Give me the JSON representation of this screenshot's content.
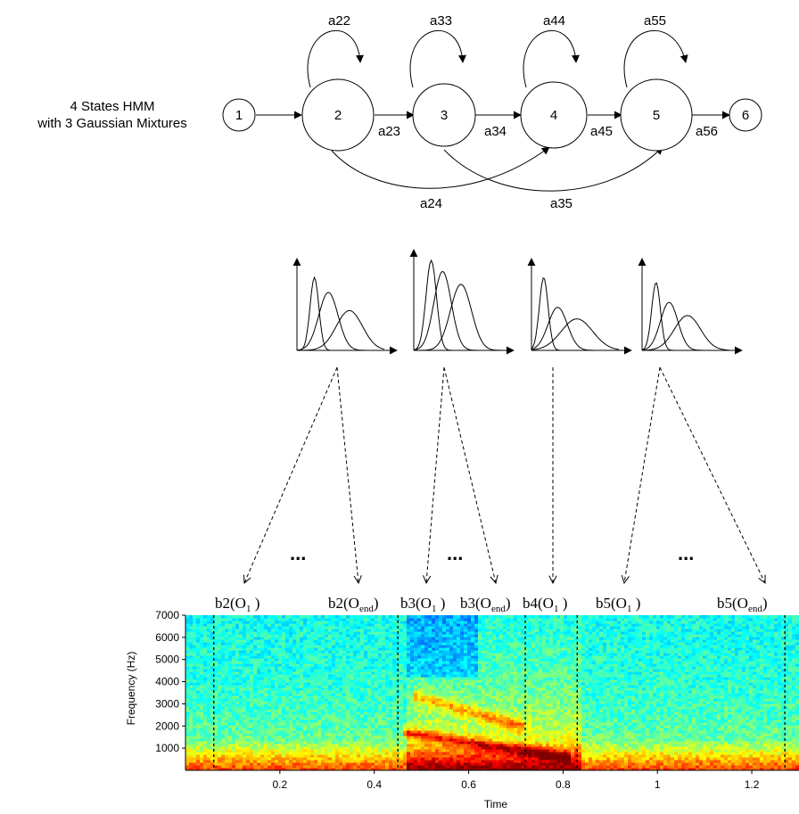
{
  "hmm": {
    "title_line1": "4 States HMM",
    "title_line2": "with 3 Gaussian Mixtures",
    "states": [
      "1",
      "2",
      "3",
      "4",
      "5",
      "6"
    ],
    "self_loops": [
      "a22",
      "a33",
      "a44",
      "a55"
    ],
    "forward": [
      "a23",
      "a34",
      "a45",
      "a56"
    ],
    "skips": [
      "a24",
      "a35"
    ]
  },
  "ellipsis": "...",
  "observations": [
    {
      "fn": "b2",
      "sub": "1",
      "close": " )"
    },
    {
      "fn": "b2",
      "sub": "end",
      "close": ")"
    },
    {
      "fn": "b3",
      "sub": "1",
      "close": " )"
    },
    {
      "fn": "b3",
      "sub": "end",
      "close": ")"
    },
    {
      "fn": "b4",
      "sub": "1",
      "close": " )"
    },
    {
      "fn": "b5",
      "sub": "1",
      "close": " )"
    },
    {
      "fn": "b5",
      "sub": "end",
      "close": ")"
    }
  ],
  "chart_data": {
    "type": "heatmap",
    "title": "",
    "xlabel": "Time",
    "ylabel": "Frequency (Hz)",
    "xticks": [
      "0.2",
      "0.4",
      "0.6",
      "0.8",
      "1",
      "1.2"
    ],
    "xtick_values": [
      0.2,
      0.4,
      0.6,
      0.8,
      1.0,
      1.2
    ],
    "yticks": [
      "1000",
      "2000",
      "3000",
      "4000",
      "5000",
      "6000",
      "7000"
    ],
    "ytick_values": [
      1000,
      2000,
      3000,
      4000,
      5000,
      6000,
      7000
    ],
    "xlim": [
      0.0,
      1.3
    ],
    "ylim": [
      0,
      7000
    ],
    "segment_boundaries": [
      0.06,
      0.45,
      0.72,
      0.83,
      1.27
    ],
    "colormap": "jet",
    "colors": {
      "low": "#18c8e0",
      "mid": "#9ee040",
      "high": "#e82000"
    }
  }
}
